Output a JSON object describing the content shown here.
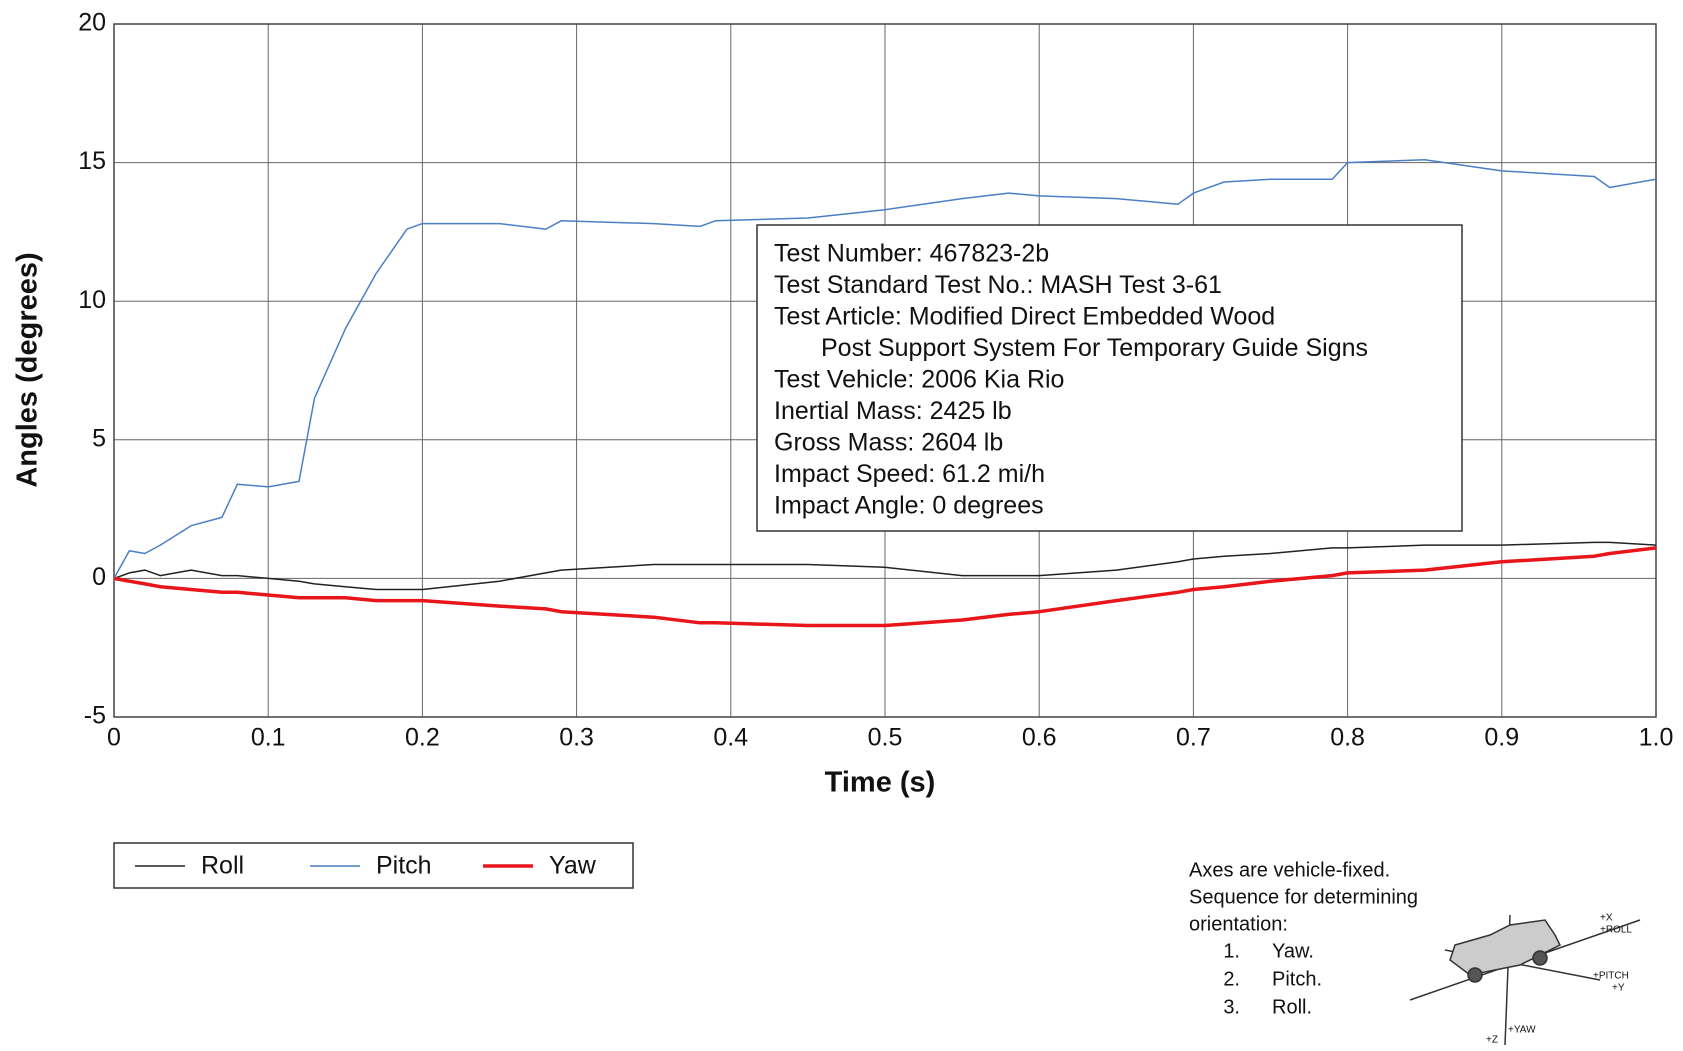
{
  "chart_data": {
    "type": "line",
    "x_label": "Time (s)",
    "y_label": "Angles (degrees)",
    "x": [
      0,
      0.01,
      0.02,
      0.03,
      0.05,
      0.07,
      0.08,
      0.1,
      0.12,
      0.13,
      0.15,
      0.17,
      0.19,
      0.2,
      0.25,
      0.28,
      0.29,
      0.35,
      0.38,
      0.39,
      0.45,
      0.5,
      0.55,
      0.58,
      0.6,
      0.65,
      0.69,
      0.7,
      0.72,
      0.75,
      0.79,
      0.8,
      0.85,
      0.9,
      0.96,
      0.97,
      1.0
    ],
    "series": [
      {
        "name": "Roll",
        "color": "#222222",
        "width": 1.5,
        "values": [
          0,
          0.2,
          0.3,
          0.1,
          0.3,
          0.1,
          0.1,
          0.0,
          -0.1,
          -0.2,
          -0.3,
          -0.4,
          -0.4,
          -0.4,
          -0.1,
          0.2,
          0.3,
          0.5,
          0.5,
          0.5,
          0.5,
          0.4,
          0.1,
          0.1,
          0.1,
          0.3,
          0.6,
          0.7,
          0.8,
          0.9,
          1.1,
          1.1,
          1.2,
          1.2,
          1.3,
          1.3,
          1.2
        ]
      },
      {
        "name": "Pitch",
        "color": "#4a7fc4",
        "width": 1.5,
        "values": [
          0,
          1.0,
          0.9,
          1.2,
          1.9,
          2.2,
          3.4,
          3.3,
          3.5,
          6.5,
          9.0,
          11.0,
          12.6,
          12.8,
          12.8,
          12.6,
          12.9,
          12.8,
          12.7,
          12.9,
          13.0,
          13.3,
          13.7,
          13.9,
          13.8,
          13.7,
          13.5,
          13.9,
          14.3,
          14.4,
          14.4,
          15.0,
          15.1,
          14.7,
          14.5,
          14.1,
          14.4
        ]
      },
      {
        "name": "Yaw",
        "color": "#e8151b",
        "width": 3.5,
        "values": [
          0,
          -0.1,
          -0.2,
          -0.3,
          -0.4,
          -0.5,
          -0.5,
          -0.6,
          -0.7,
          -0.7,
          -0.7,
          -0.8,
          -0.8,
          -0.8,
          -1.0,
          -1.1,
          -1.2,
          -1.4,
          -1.6,
          -1.6,
          -1.7,
          -1.7,
          -1.5,
          -1.3,
          -1.2,
          -0.8,
          -0.5,
          -0.4,
          -0.3,
          -0.1,
          0.1,
          0.2,
          0.3,
          0.6,
          0.8,
          0.9,
          1.1
        ]
      }
    ],
    "xlim": [
      0,
      1
    ],
    "ylim": [
      -5,
      20
    ],
    "xticks": [
      0,
      0.1,
      0.2,
      0.3,
      0.4,
      0.5,
      0.6,
      0.7,
      0.8,
      0.9,
      {
        "value": 1,
        "label": "1.0"
      }
    ],
    "yticks": [
      -5,
      0,
      5,
      10,
      15,
      20
    ],
    "grid": true,
    "info_box": [
      "Test Number: 467823-2b",
      "Test Standard Test No.: MASH Test 3-61",
      "Test Article: Modified Direct Embedded Wood",
      "Post Support System For Temporary Guide Signs",
      "Test Vehicle: 2006 Kia Rio",
      "Inertial Mass: 2425 lb",
      "Gross Mass: 2604 lb",
      "Impact Speed: 61.2 mi/h",
      "Impact Angle: 0 degrees"
    ],
    "notes": [
      "Axes are vehicle-fixed.",
      "Sequence for determining",
      "orientation:"
    ],
    "sequence": [
      {
        "number": "1.",
        "text": "Yaw."
      },
      {
        "number": "2.",
        "text": "Pitch."
      },
      {
        "number": "3.",
        "text": "Roll."
      }
    ],
    "diagram_labels": [
      "+X",
      "+ROLL",
      "+PITCH",
      "+Y",
      "+Z",
      "+YAW"
    ]
  }
}
